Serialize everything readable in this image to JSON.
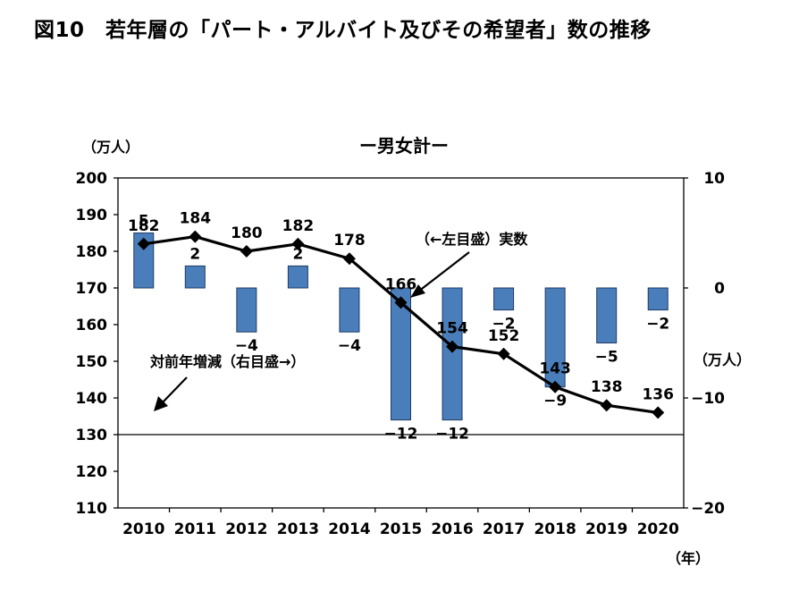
{
  "figure_title": "図10　若年層の「パート・アルバイト及びその希望者」数の推移",
  "chart_data": {
    "type": "line+bar",
    "title": "ー男女計ー",
    "x": [
      "2010",
      "2011",
      "2012",
      "2013",
      "2014",
      "2015",
      "2016",
      "2017",
      "2018",
      "2019",
      "2020"
    ],
    "x_unit": "（年）",
    "left_axis": {
      "unit": "（万人）",
      "range": [
        110,
        200
      ],
      "ticks": [
        110,
        120,
        130,
        140,
        150,
        160,
        170,
        180,
        190,
        200
      ]
    },
    "right_axis": {
      "unit": "（万人）",
      "range": [
        -20,
        10
      ],
      "ticks": [
        -20,
        -10,
        0,
        10
      ]
    },
    "series": [
      {
        "name": "（←左目盛）実数",
        "type": "line",
        "axis": "left",
        "values": [
          182,
          184,
          180,
          182,
          178,
          166,
          154,
          152,
          143,
          138,
          136
        ],
        "color": "#000000"
      },
      {
        "name": "対前年増減（右目盛→）",
        "type": "bar",
        "axis": "right",
        "values": [
          5,
          2,
          -4,
          2,
          -4,
          -12,
          -12,
          -2,
          -9,
          -5,
          -2
        ],
        "labels": [
          "5",
          "2",
          "−4",
          "2",
          "−4",
          "−12",
          "−12",
          "−2",
          "−9",
          "−5",
          "−2"
        ],
        "color": "#4a7ebb"
      }
    ],
    "grid": false
  }
}
